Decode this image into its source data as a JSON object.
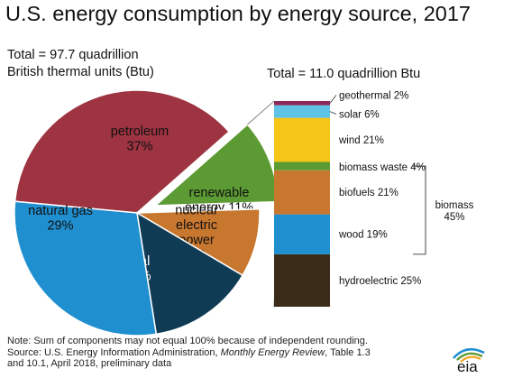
{
  "title": "U.S. energy consumption by energy source, 2017",
  "total_left_line1": "Total = 97.7 quadrillion",
  "total_left_line2": "British thermal units (Btu)",
  "total_right": "Total = 11.0 quadrillion Btu",
  "chart_data": [
    {
      "type": "pie",
      "categories": [
        "petroleum",
        "renewable energy",
        "nuclear electric power",
        "coal",
        "natural gas"
      ],
      "values": [
        37,
        11,
        9,
        14,
        29
      ],
      "labels": [
        "petroleum\n37%",
        "renewable\nenergy 11%",
        "nuclear\nelectric\npower\n9%",
        "coal\n14%",
        "natural gas\n29%"
      ],
      "colors": [
        "#9e3341",
        "#5c9a33",
        "#c8772f",
        "#0f3b55",
        "#1f8fcf"
      ],
      "exploded": "renewable energy"
    },
    {
      "type": "bar",
      "stacked": true,
      "categories": [
        "hydroelectric",
        "wood",
        "biofuels",
        "biomass waste",
        "wind",
        "solar",
        "geothermal"
      ],
      "values": [
        25,
        19,
        21,
        4,
        21,
        6,
        2
      ],
      "labels": [
        "hydroelectric 25%",
        "wood 19%",
        "biofuels 21%",
        "biomass waste 4%",
        "wind 21%",
        "solar 6%",
        "geothermal 2%"
      ],
      "colors": [
        "#3a2c18",
        "#1f8fcf",
        "#c8772f",
        "#5c9a33",
        "#f5c518",
        "#5fc3e8",
        "#8b2a5a"
      ],
      "bracket": {
        "label_line1": "biomass",
        "label_line2": "45%",
        "covers": [
          "wood",
          "biofuels",
          "biomass waste"
        ]
      }
    }
  ],
  "note_line1": "Note: Sum of components may not equal 100% because of independent rounding.",
  "note_line2_prefix": "Source: U.S. Energy Information Administration, ",
  "note_line2_italic": "Monthly Energy Review",
  "note_line2_suffix": ", Table 1.3",
  "note_line3": "and 10.1, April 2018, preliminary data",
  "logo_text": "eia"
}
